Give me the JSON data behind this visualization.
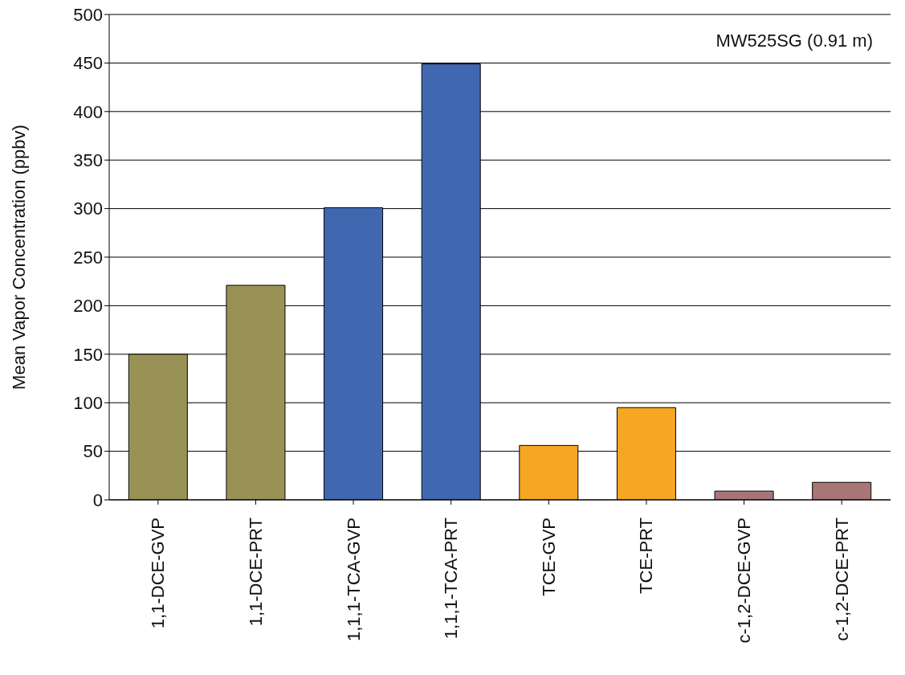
{
  "chart_data": {
    "type": "bar",
    "ylabel": "Mean Vapor Concentration (ppbv)",
    "annotations": [
      "MW525SG (0.91 m)"
    ],
    "categories": [
      "1,1-DCE-GVP",
      "1,1-DCE-PRT",
      "1,1,1-TCA-GVP",
      "1,1,1-TCA-PRT",
      "TCE-GVP",
      "TCE-PRT",
      "c-1,2-DCE-GVP",
      "c-1,2-DCE-PRT"
    ],
    "values": [
      150,
      221,
      301,
      449,
      56,
      95,
      9,
      18
    ],
    "colors": [
      "#999257",
      "#999257",
      "#3f68b0",
      "#3f68b0",
      "#f5a623",
      "#f5a623",
      "#a87676",
      "#a87676"
    ],
    "ylim": [
      0,
      500
    ],
    "yticks": [
      0,
      50,
      100,
      150,
      200,
      250,
      300,
      350,
      400,
      450,
      500
    ],
    "grid": "y"
  }
}
